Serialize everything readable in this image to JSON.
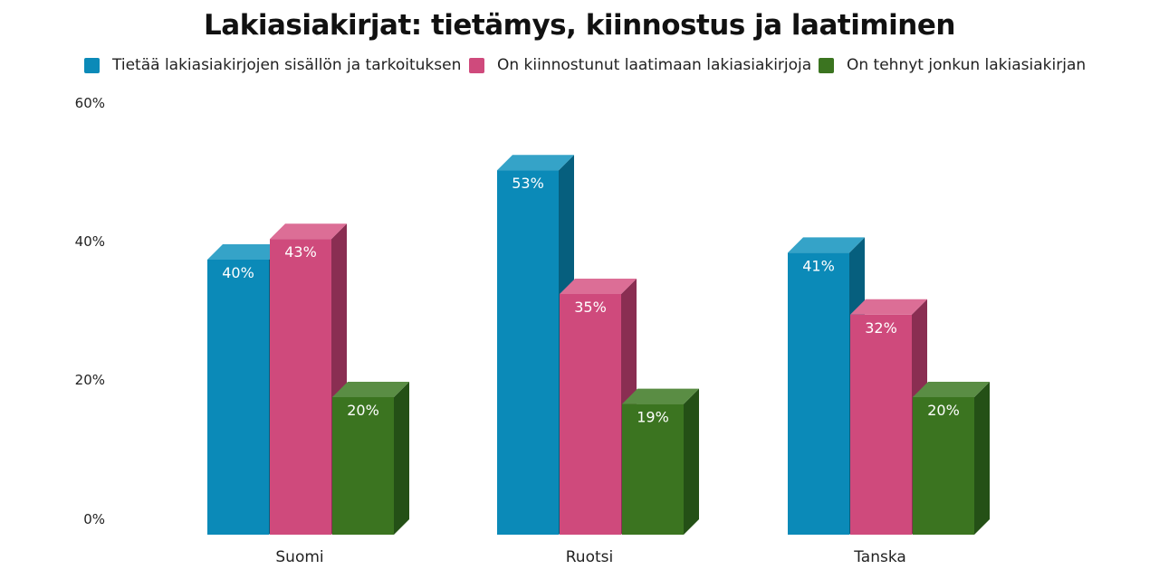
{
  "chart_data": {
    "type": "bar",
    "style": "3d-clustered-column",
    "title": "Lakiasiakirjat: tietämys, kiinnostus ja laatiminen",
    "xlabel": "",
    "ylabel": "",
    "categories": [
      "Suomi",
      "Ruotsi",
      "Tanska"
    ],
    "series": [
      {
        "name": "Tietää lakiasiakirjojen sisällön ja tarkoituksen",
        "values": [
          40,
          53,
          41
        ],
        "color": "#0b8ab8",
        "top_color": "#35a3c8",
        "side_color": "#065f7e"
      },
      {
        "name": "On kiinnostunut laatimaan lakiasiakirjoja",
        "values": [
          43,
          35,
          32
        ],
        "color": "#cf4a7c",
        "top_color": "#dc6e96",
        "side_color": "#8a2e52"
      },
      {
        "name": "On tehnyt jonkun lakiasiakirjan",
        "values": [
          20,
          19,
          20
        ],
        "color": "#3b7420",
        "top_color": "#5a8d44",
        "side_color": "#245016"
      }
    ],
    "data_labels": [
      [
        "40%",
        "53%",
        "41%"
      ],
      [
        "43%",
        "35%",
        "32%"
      ],
      [
        "20%",
        "19%",
        "20%"
      ]
    ],
    "yticks": [
      "0%",
      "20%",
      "40%",
      "60%"
    ],
    "ylim": [
      0,
      60
    ],
    "grid": false,
    "legend_position": "top"
  },
  "title": "Lakiasiakirjat: tietämys, kiinnostus ja laatiminen",
  "legend": [
    {
      "label": "Tietää lakiasiakirjojen sisällön ja tarkoituksen",
      "color": "#0b8ab8"
    },
    {
      "label": "On kiinnostunut laatimaan lakiasiakirjoja",
      "color": "#cf4a7c"
    },
    {
      "label": "On tehnyt jonkun lakiasiakirjan",
      "color": "#3b7420"
    }
  ],
  "yaxis": {
    "ticks": [
      "60%",
      "40%",
      "20%",
      "0%"
    ]
  },
  "xaxis": {
    "labels": [
      "Suomi",
      "Ruotsi",
      "Tanska"
    ]
  }
}
